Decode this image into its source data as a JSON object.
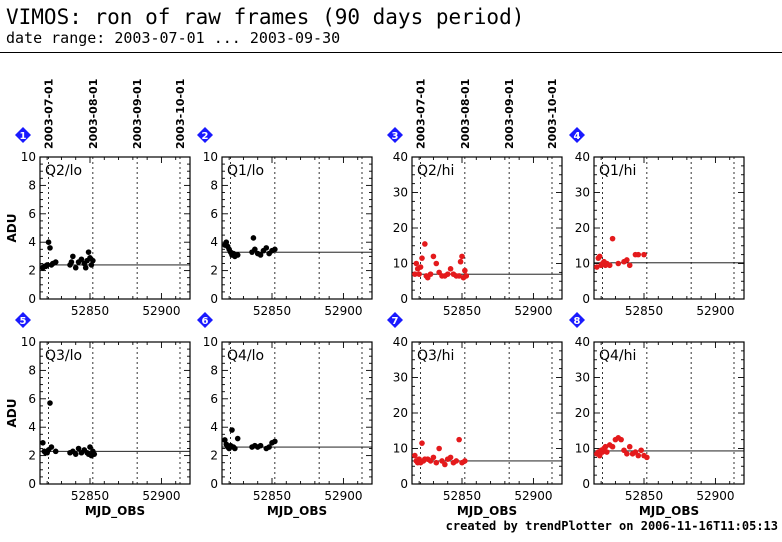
{
  "header": {
    "title": "VIMOS: ron of raw frames (90 days period)",
    "subtitle": "date range: 2003-07-01 ... 2003-09-30"
  },
  "footer": {
    "credit": "created by trendPlotter on 2006-11-16T11:05:13"
  },
  "colors": {
    "lo": "#000000",
    "hi": "#e41a1c",
    "badge": "#1a1aff"
  },
  "date_labels": [
    "2003-07-01",
    "2003-08-01",
    "2003-09-01",
    "2003-10-01"
  ],
  "date_mjd": [
    52821,
    52852,
    52883,
    52913
  ],
  "xlim": [
    52815,
    52920
  ],
  "x_tick_labels": [
    "52850",
    "52900"
  ],
  "x_tick_values": [
    52850,
    52900
  ],
  "ylabel": "ADU",
  "xlabel": "MJD_OBS",
  "chart_data": [
    {
      "type": "scatter",
      "badge": "1",
      "label": "Q2/lo",
      "color": "lo",
      "ylim": [
        0,
        10
      ],
      "yticks": [
        0,
        2,
        4,
        6,
        8,
        10
      ],
      "ref": 2.4,
      "points": [
        [
          52817,
          2.2
        ],
        [
          52818,
          2.3
        ],
        [
          52819,
          2.3
        ],
        [
          52820,
          2.4
        ],
        [
          52821,
          4.0
        ],
        [
          52822,
          3.6
        ],
        [
          52823,
          2.4
        ],
        [
          52824,
          2.5
        ],
        [
          52826,
          2.6
        ],
        [
          52836,
          2.4
        ],
        [
          52837,
          2.6
        ],
        [
          52838,
          3.0
        ],
        [
          52840,
          2.2
        ],
        [
          52842,
          2.6
        ],
        [
          52844,
          2.8
        ],
        [
          52846,
          2.5
        ],
        [
          52847,
          2.2
        ],
        [
          52848,
          2.7
        ],
        [
          52849,
          3.3
        ],
        [
          52850,
          2.9
        ],
        [
          52851,
          2.4
        ],
        [
          52852,
          2.7
        ]
      ]
    },
    {
      "type": "scatter",
      "badge": "2",
      "label": "Q1/lo",
      "color": "lo",
      "ylim": [
        0,
        10
      ],
      "yticks": [
        0,
        2,
        4,
        6,
        8,
        10
      ],
      "ref": 3.3,
      "points": [
        [
          52817,
          3.8
        ],
        [
          52818,
          4.0
        ],
        [
          52819,
          3.7
        ],
        [
          52820,
          3.5
        ],
        [
          52821,
          3.3
        ],
        [
          52822,
          3.1
        ],
        [
          52823,
          3.2
        ],
        [
          52824,
          3.0
        ],
        [
          52826,
          3.1
        ],
        [
          52836,
          3.3
        ],
        [
          52837,
          4.3
        ],
        [
          52838,
          3.5
        ],
        [
          52840,
          3.2
        ],
        [
          52842,
          3.1
        ],
        [
          52844,
          3.4
        ],
        [
          52846,
          3.6
        ],
        [
          52848,
          3.2
        ],
        [
          52850,
          3.4
        ],
        [
          52852,
          3.5
        ]
      ]
    },
    {
      "type": "scatter",
      "badge": "3",
      "label": "Q2/hi",
      "color": "hi",
      "ylim": [
        0,
        40
      ],
      "yticks": [
        0,
        10,
        20,
        30,
        40
      ],
      "ref": 7.0,
      "points": [
        [
          52817,
          7.0
        ],
        [
          52818,
          10.0
        ],
        [
          52819,
          8.5
        ],
        [
          52820,
          7.0
        ],
        [
          52821,
          9.0
        ],
        [
          52822,
          11.5
        ],
        [
          52824,
          15.5
        ],
        [
          52825,
          6.5
        ],
        [
          52826,
          6.0
        ],
        [
          52828,
          7.0
        ],
        [
          52830,
          12.0
        ],
        [
          52832,
          10.0
        ],
        [
          52834,
          7.5
        ],
        [
          52836,
          6.5
        ],
        [
          52838,
          6.5
        ],
        [
          52840,
          7.0
        ],
        [
          52842,
          8.5
        ],
        [
          52844,
          7.0
        ],
        [
          52846,
          6.5
        ],
        [
          52848,
          6.5
        ],
        [
          52849,
          10.5
        ],
        [
          52850,
          12.0
        ],
        [
          52851,
          6.0
        ],
        [
          52852,
          8.0
        ],
        [
          52853,
          6.5
        ]
      ]
    },
    {
      "type": "scatter",
      "badge": "4",
      "label": "Q1/hi",
      "color": "hi",
      "ylim": [
        0,
        40
      ],
      "yticks": [
        0,
        10,
        20,
        30,
        40
      ],
      "ref": 10.2,
      "points": [
        [
          52817,
          9.0
        ],
        [
          52818,
          11.5
        ],
        [
          52819,
          12.0
        ],
        [
          52820,
          9.5
        ],
        [
          52821,
          10.0
        ],
        [
          52822,
          10.5
        ],
        [
          52823,
          9.5
        ],
        [
          52824,
          10.0
        ],
        [
          52826,
          9.5
        ],
        [
          52828,
          17.0
        ],
        [
          52832,
          10.0
        ],
        [
          52836,
          10.5
        ],
        [
          52838,
          11.0
        ],
        [
          52840,
          9.5
        ],
        [
          52844,
          12.5
        ],
        [
          52846,
          12.5
        ],
        [
          52850,
          12.5
        ]
      ]
    },
    {
      "type": "scatter",
      "badge": "5",
      "label": "Q3/lo",
      "color": "lo",
      "ylim": [
        0,
        10
      ],
      "yticks": [
        0,
        2,
        4,
        6,
        8,
        10
      ],
      "ref": 2.3,
      "points": [
        [
          52817,
          2.9
        ],
        [
          52818,
          2.3
        ],
        [
          52819,
          2.2
        ],
        [
          52820,
          2.2
        ],
        [
          52821,
          2.4
        ],
        [
          52822,
          5.7
        ],
        [
          52823,
          2.6
        ],
        [
          52826,
          2.3
        ],
        [
          52836,
          2.2
        ],
        [
          52838,
          2.3
        ],
        [
          52840,
          2.1
        ],
        [
          52842,
          2.5
        ],
        [
          52844,
          2.2
        ],
        [
          52846,
          2.4
        ],
        [
          52848,
          2.2
        ],
        [
          52849,
          2.1
        ],
        [
          52850,
          2.6
        ],
        [
          52851,
          2.0
        ],
        [
          52852,
          2.3
        ],
        [
          52853,
          2.1
        ]
      ]
    },
    {
      "type": "scatter",
      "badge": "6",
      "label": "Q4/lo",
      "color": "lo",
      "ylim": [
        0,
        10
      ],
      "yticks": [
        0,
        2,
        4,
        6,
        8,
        10
      ],
      "ref": 2.6,
      "points": [
        [
          52817,
          3.1
        ],
        [
          52818,
          2.8
        ],
        [
          52819,
          2.6
        ],
        [
          52820,
          2.5
        ],
        [
          52821,
          2.7
        ],
        [
          52822,
          3.8
        ],
        [
          52823,
          2.6
        ],
        [
          52824,
          2.5
        ],
        [
          52826,
          3.2
        ],
        [
          52836,
          2.6
        ],
        [
          52838,
          2.7
        ],
        [
          52840,
          2.6
        ],
        [
          52842,
          2.7
        ],
        [
          52846,
          2.5
        ],
        [
          52848,
          2.6
        ],
        [
          52850,
          2.9
        ],
        [
          52852,
          3.0
        ]
      ]
    },
    {
      "type": "scatter",
      "badge": "7",
      "label": "Q3/hi",
      "color": "hi",
      "ylim": [
        0,
        40
      ],
      "yticks": [
        0,
        10,
        20,
        30,
        40
      ],
      "ref": 6.5,
      "points": [
        [
          52817,
          8.0
        ],
        [
          52818,
          6.5
        ],
        [
          52819,
          6.0
        ],
        [
          52820,
          7.0
        ],
        [
          52821,
          6.0
        ],
        [
          52822,
          11.5
        ],
        [
          52823,
          6.5
        ],
        [
          52824,
          7.0
        ],
        [
          52826,
          7.0
        ],
        [
          52828,
          6.5
        ],
        [
          52830,
          7.5
        ],
        [
          52832,
          6.0
        ],
        [
          52834,
          10.0
        ],
        [
          52836,
          6.5
        ],
        [
          52838,
          5.5
        ],
        [
          52840,
          7.0
        ],
        [
          52842,
          7.5
        ],
        [
          52844,
          6.0
        ],
        [
          52846,
          6.5
        ],
        [
          52848,
          12.5
        ],
        [
          52850,
          6.0
        ],
        [
          52852,
          6.5
        ]
      ]
    },
    {
      "type": "scatter",
      "badge": "8",
      "label": "Q4/hi",
      "color": "hi",
      "ylim": [
        0,
        40
      ],
      "yticks": [
        0,
        10,
        20,
        30,
        40
      ],
      "ref": 9.3,
      "points": [
        [
          52817,
          8.5
        ],
        [
          52818,
          9.0
        ],
        [
          52819,
          8.0
        ],
        [
          52820,
          9.5
        ],
        [
          52821,
          9.0
        ],
        [
          52822,
          10.0
        ],
        [
          52823,
          10.5
        ],
        [
          52824,
          9.0
        ],
        [
          52826,
          11.0
        ],
        [
          52828,
          10.5
        ],
        [
          52830,
          12.5
        ],
        [
          52832,
          13.0
        ],
        [
          52834,
          12.5
        ],
        [
          52836,
          9.5
        ],
        [
          52838,
          8.5
        ],
        [
          52840,
          10.5
        ],
        [
          52842,
          8.5
        ],
        [
          52844,
          9.0
        ],
        [
          52846,
          8.0
        ],
        [
          52848,
          9.5
        ],
        [
          52850,
          8.0
        ],
        [
          52852,
          7.5
        ]
      ]
    }
  ]
}
